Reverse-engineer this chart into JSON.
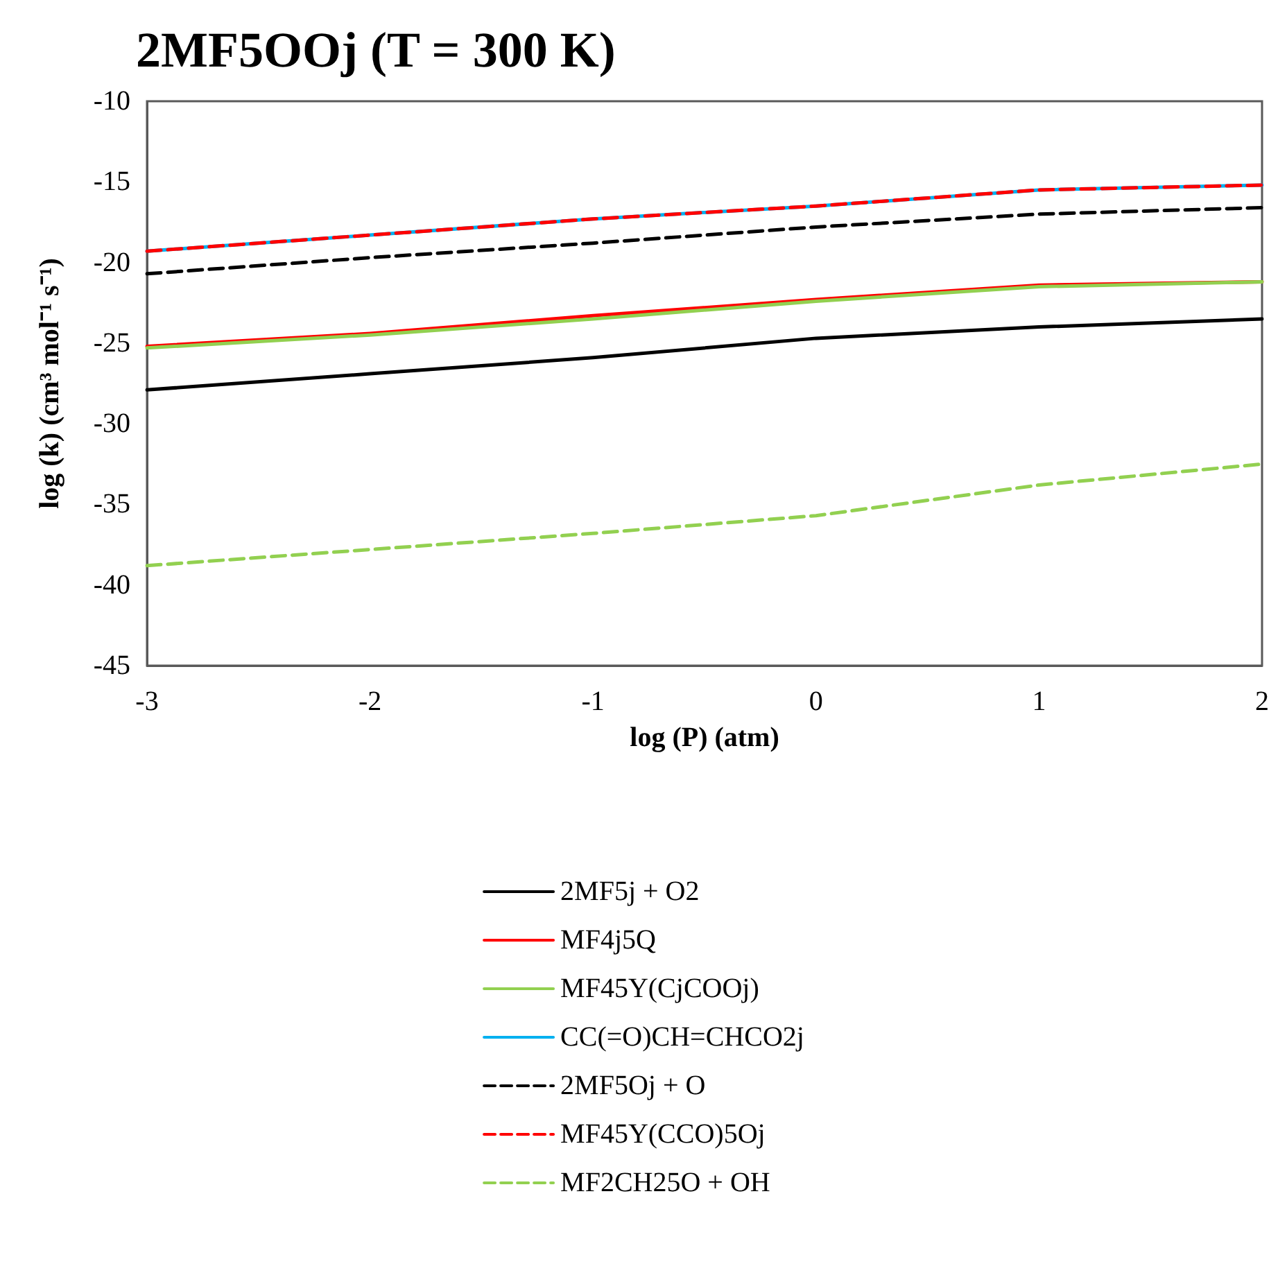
{
  "chart_data": {
    "type": "line",
    "title": "2MF5OOj (T = 300 K)",
    "xlabel": "log (P) (atm)",
    "ylabel": "log (k) (cm³ mol⁻¹ s⁻¹)",
    "x": [
      -3,
      -2,
      -1,
      0,
      1,
      2
    ],
    "xlim": [
      -3,
      2
    ],
    "xticks": [
      -3,
      -2,
      -1,
      0,
      1,
      2
    ],
    "ylim": [
      -45,
      -10
    ],
    "yticks": [
      -45,
      -40,
      -35,
      -30,
      -25,
      -20,
      -15,
      -10
    ],
    "grid": false,
    "legend": "bottom",
    "marker": "none",
    "series": [
      {
        "name": "2MF5j + O2",
        "color": "#000000",
        "line_style": "solid",
        "values": [
          -27.9,
          -26.9,
          -25.9,
          -24.7,
          -24.0,
          -23.5
        ]
      },
      {
        "name": "MF4j5Q",
        "color": "#ff0000",
        "line_style": "solid",
        "values": [
          -25.2,
          -24.4,
          -23.3,
          -22.3,
          -21.4,
          -21.2
        ]
      },
      {
        "name": "MF45Y(CjCOOj)",
        "color": "#92d050",
        "line_style": "solid",
        "values": [
          -25.3,
          -24.5,
          -23.5,
          -22.4,
          -21.5,
          -21.2
        ]
      },
      {
        "name": "CC(=O)CH=CHCO2j",
        "color": "#00b0f0",
        "line_style": "solid",
        "values": [
          -19.3,
          -18.3,
          -17.3,
          -16.5,
          -15.5,
          -15.2
        ]
      },
      {
        "name": "2MF5Oj + O",
        "color": "#000000",
        "line_style": "dashed",
        "values": [
          -20.7,
          -19.7,
          -18.8,
          -17.8,
          -17.0,
          -16.6
        ]
      },
      {
        "name": "MF45Y(CCO)5Oj",
        "color": "#ff0000",
        "line_style": "dashed",
        "values": [
          -19.3,
          -18.3,
          -17.3,
          -16.5,
          -15.5,
          -15.2
        ]
      },
      {
        "name": "MF2CH25O + OH",
        "color": "#92d050",
        "line_style": "dashed",
        "values": [
          -38.8,
          -37.8,
          -36.8,
          -35.7,
          -33.8,
          -32.5
        ]
      }
    ]
  }
}
